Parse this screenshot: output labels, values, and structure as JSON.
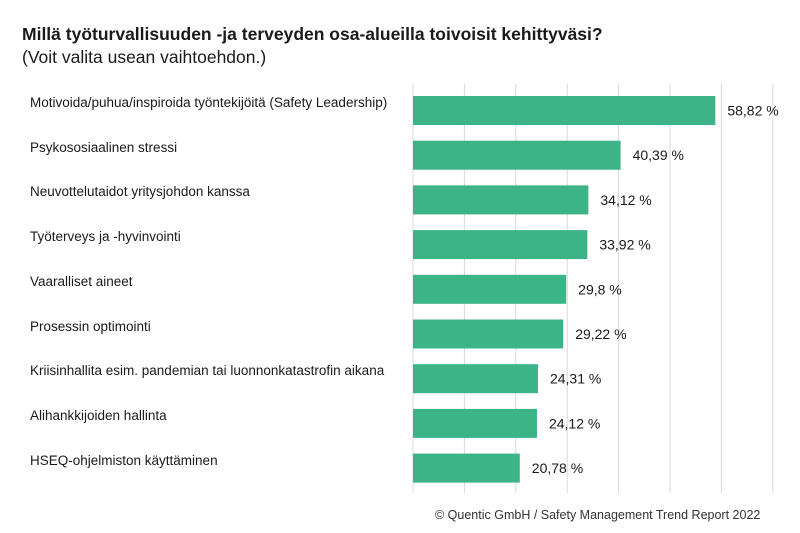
{
  "title": "Millä työturvallisuuden -ja terveyden osa-alueilla toivoisit kehittyväsi?",
  "subtitle": "(Voit valita usean vaihtoehdon.)",
  "footer": "© Quentic GmbH / Safety Management Trend Report 2022",
  "colors": {
    "bar": "#3db487",
    "grid": "#d9d9d9"
  },
  "chart_data": {
    "type": "bar",
    "orientation": "horizontal",
    "categories": [
      "Motivoida/puhua/inspiroida työntekijöitä (Safety Leadership)",
      "Psykososiaalinen stressi",
      "Neuvottelutaidot yritysjohdon kanssa",
      "Työterveys ja -hyvinvointi",
      "Vaaralliset aineet",
      "Prosessin optimointi",
      "Kriisinhallita esim. pandemian tai luonnonkatastrofin aikana",
      "Alihankkijoiden hallinta",
      "HSEQ-ohjelmiston käyttäminen"
    ],
    "values": [
      58.82,
      40.39,
      34.12,
      33.92,
      29.8,
      29.22,
      24.31,
      24.12,
      20.78
    ],
    "value_labels": [
      "58,82 %",
      "40,39 %",
      "34,12 %",
      "33,92 %",
      "29,8 %",
      "29,22 %",
      "24,31 %",
      "24,12 %",
      "20,78 %"
    ],
    "xlim": [
      0,
      70
    ],
    "grid": true,
    "legend": "none"
  }
}
